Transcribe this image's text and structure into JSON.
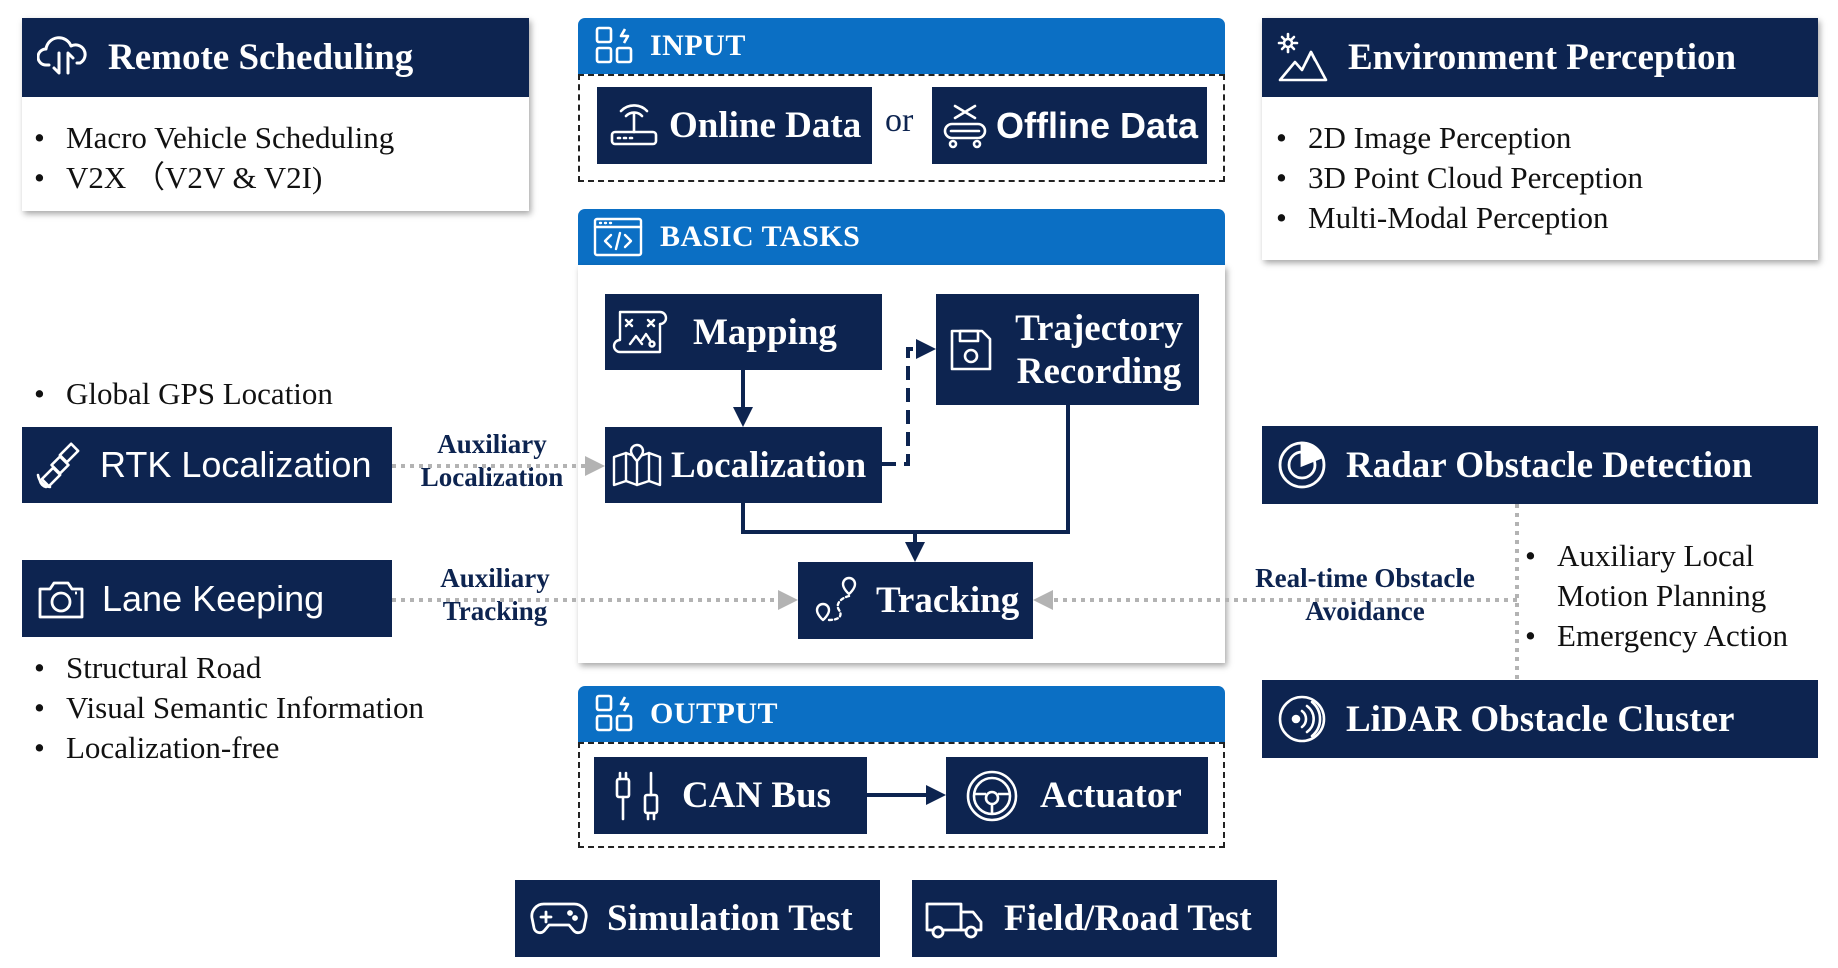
{
  "remote_scheduling": {
    "title": "Remote Scheduling",
    "items": [
      "Macro Vehicle Scheduling",
      "V2X （V2V & V2I)"
    ]
  },
  "environment_perception": {
    "title": "Environment Perception",
    "items": [
      "2D Image Perception",
      "3D Point Cloud Perception",
      "Multi-Modal Perception"
    ]
  },
  "input": {
    "title": "INPUT",
    "online": "Online Data",
    "or": "or",
    "offline": "Offline Data"
  },
  "basic_tasks": {
    "title": "BASIC TASKS",
    "mapping": "Mapping",
    "trajectory": "Trajectory Recording",
    "localization": "Localization",
    "tracking": "Tracking"
  },
  "output": {
    "title": "OUTPUT",
    "can_bus": "CAN Bus",
    "actuator": "Actuator"
  },
  "rtk": {
    "bullet": "Global GPS Location",
    "title": "RTK Localization",
    "edge_label": "Auxiliary Localization"
  },
  "lane": {
    "title": "Lane Keeping",
    "edge_label": "Auxiliary Tracking",
    "items": [
      "Structural Road",
      "Visual Semantic Information",
      "Localization-free"
    ]
  },
  "radar": {
    "title": "Radar Obstacle Detection",
    "items": [
      "Auxiliary Local Motion Planning",
      "Emergency Action"
    ],
    "edge_label": "Real-time Obstacle Avoidance"
  },
  "lidar": {
    "title": "LiDAR Obstacle Cluster"
  },
  "tests": {
    "simulation": "Simulation Test",
    "field": "Field/Road Test"
  },
  "colors": {
    "navy": "#0d2450",
    "blue_header": "#0b6fc4"
  }
}
